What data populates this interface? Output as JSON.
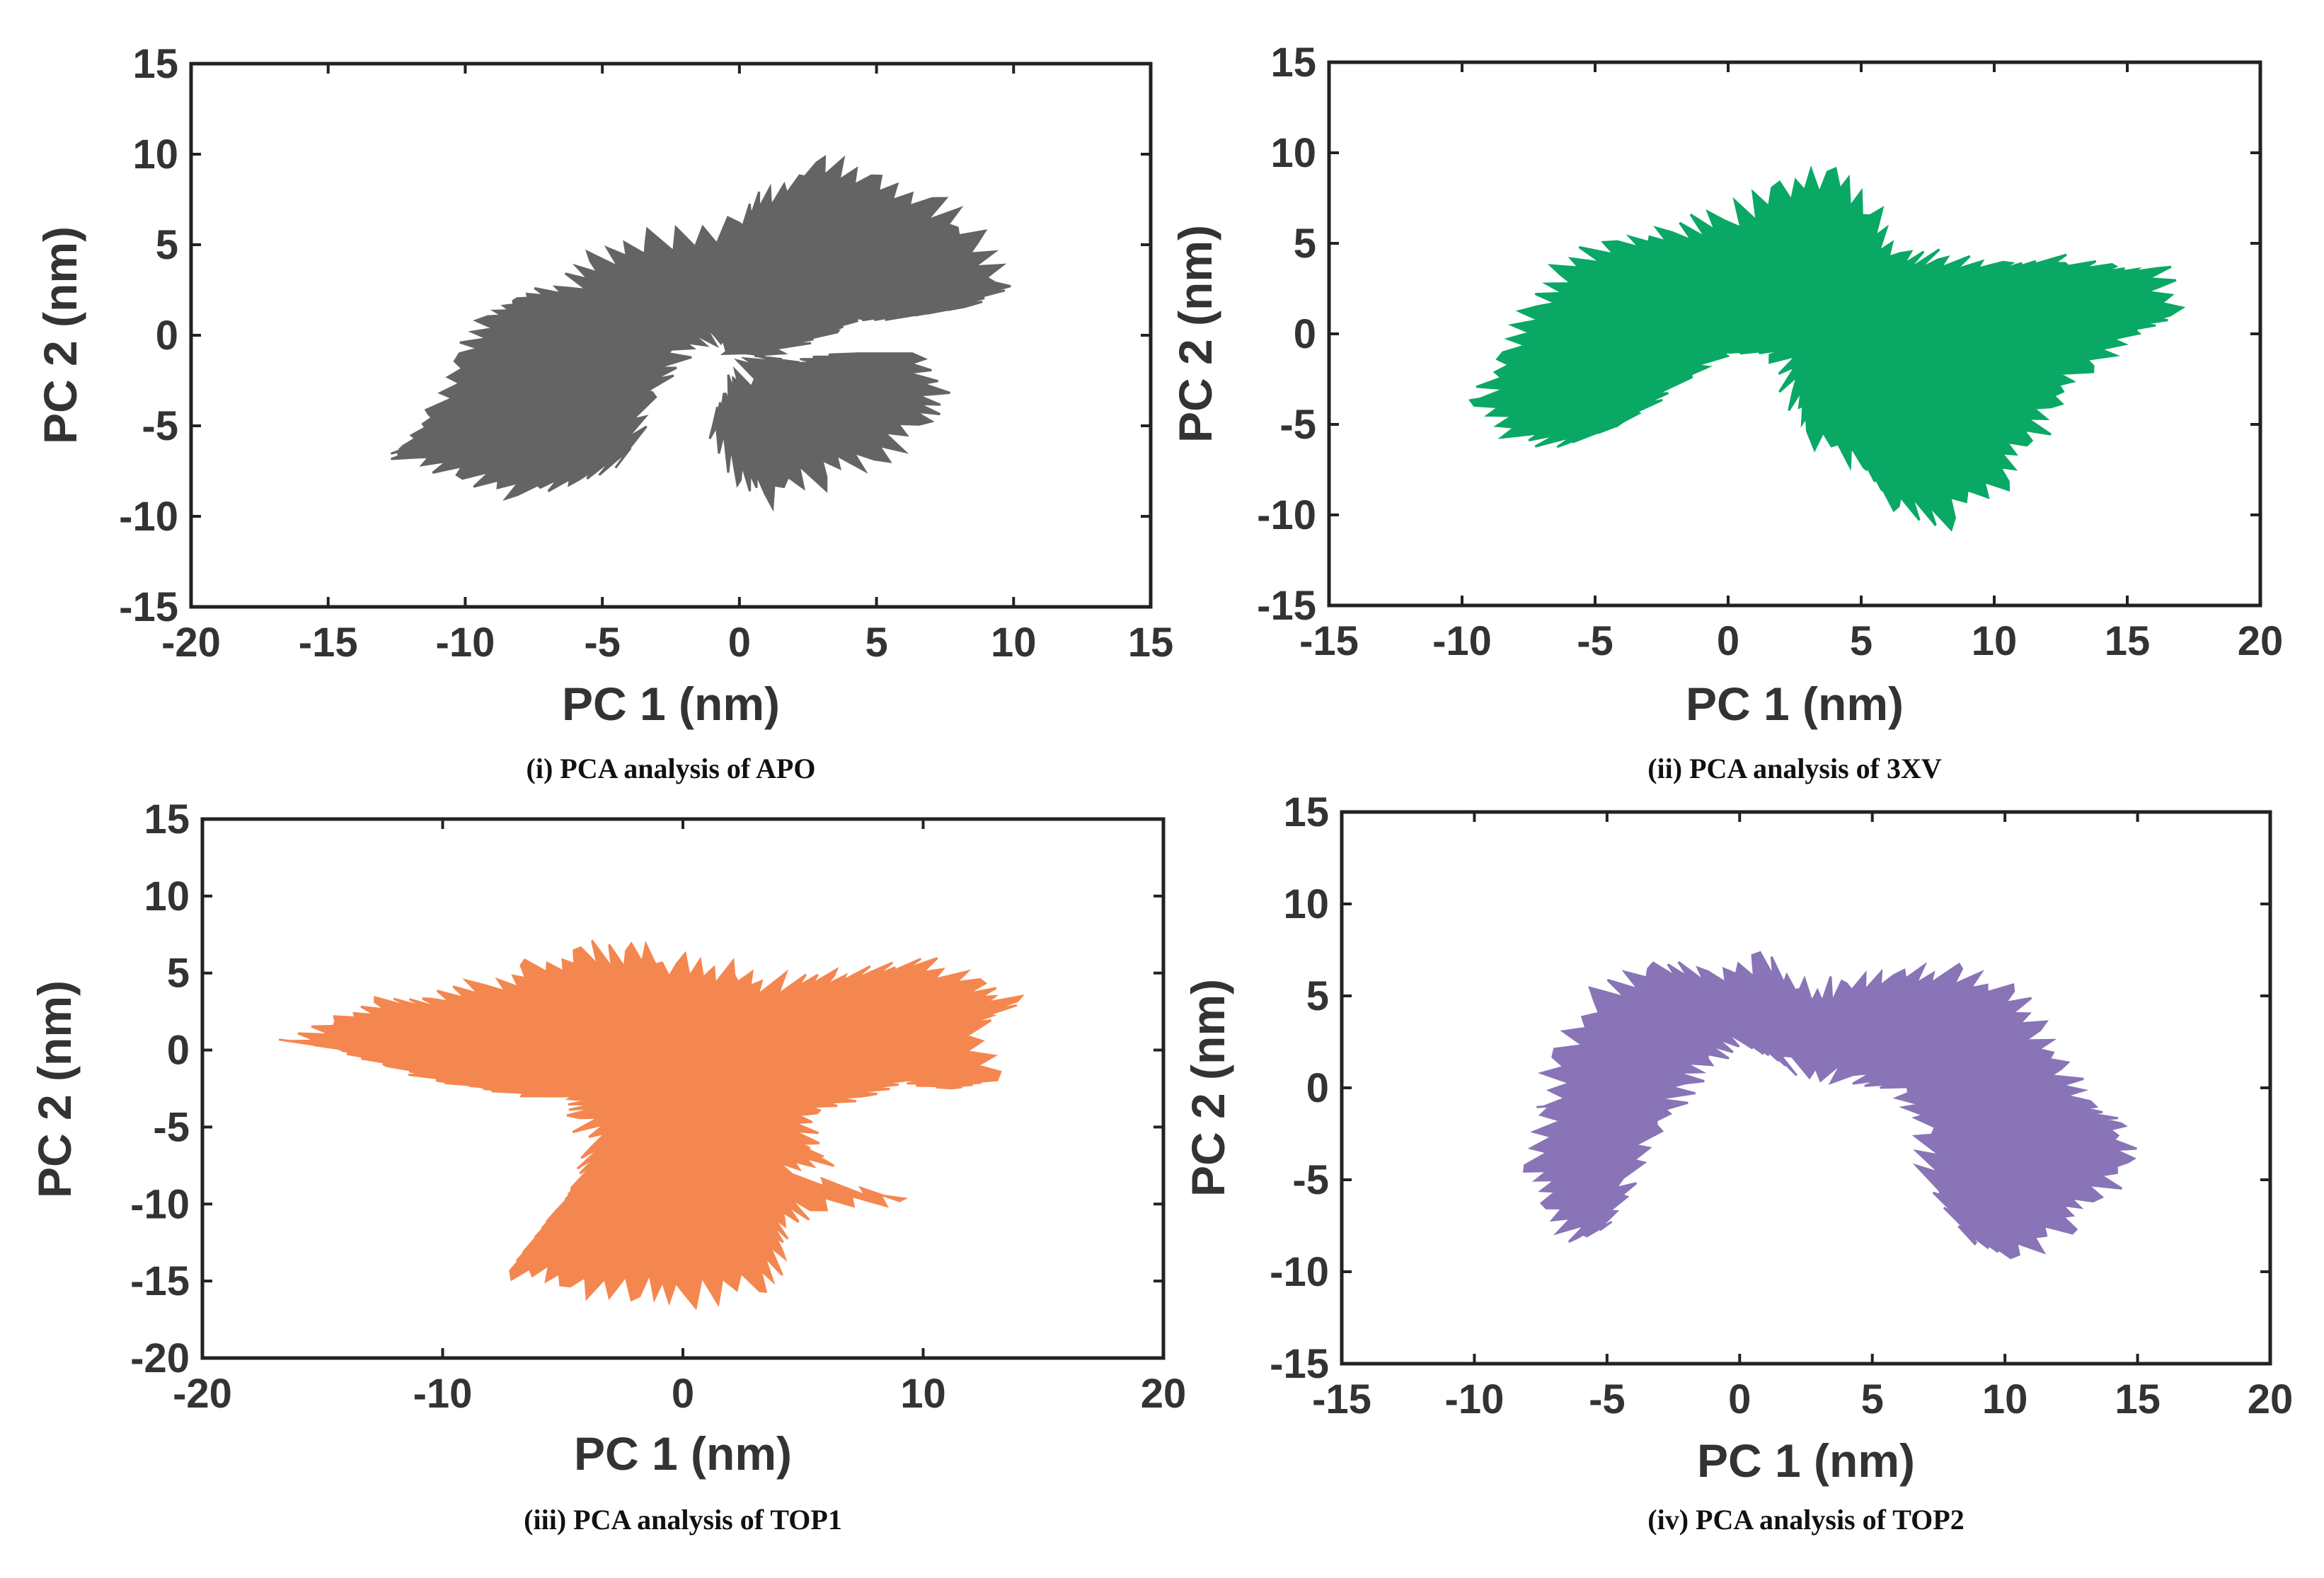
{
  "chart_data": [
    {
      "type": "area",
      "caption": "(i) PCA analysis of APO",
      "xlabel": "PC 1 (nm)",
      "ylabel": "PC 2 (nm)",
      "xlim": [
        -20,
        15
      ],
      "ylim": [
        -15,
        15
      ],
      "xticks": [
        -20,
        -15,
        -10,
        -5,
        0,
        5,
        10,
        15
      ],
      "yticks": [
        -15,
        -10,
        -5,
        0,
        5,
        10,
        15
      ],
      "color": "#646464",
      "outline": [
        [
          -12,
          -6
        ],
        [
          -11,
          -4
        ],
        [
          -10,
          -1
        ],
        [
          -9,
          1
        ],
        [
          -8,
          2
        ],
        [
          -6,
          2.5
        ],
        [
          -5,
          4
        ],
        [
          -3,
          5
        ],
        [
          0,
          6
        ],
        [
          1,
          7.5
        ],
        [
          3,
          9.5
        ],
        [
          5,
          8.5
        ],
        [
          7,
          7
        ],
        [
          8.5,
          5
        ],
        [
          9.3,
          2.5
        ],
        [
          8,
          1.5
        ],
        [
          6,
          1
        ],
        [
          4,
          0.8
        ],
        [
          3,
          0
        ],
        [
          1,
          -1
        ],
        [
          0,
          -2
        ],
        [
          -0.5,
          -3
        ],
        [
          -1,
          -5
        ],
        [
          0,
          -7.5
        ],
        [
          1,
          -8.5
        ],
        [
          3,
          -7.5
        ],
        [
          5,
          -6.5
        ],
        [
          6.5,
          -4.5
        ],
        [
          7,
          -3
        ],
        [
          6,
          -1
        ],
        [
          4,
          -1
        ],
        [
          2,
          -1.5
        ],
        [
          0,
          -1
        ],
        [
          -1,
          0
        ],
        [
          -2,
          -1
        ],
        [
          -3,
          -3
        ],
        [
          -4,
          -6.5
        ],
        [
          -6,
          -8
        ],
        [
          -8,
          -8.5
        ],
        [
          -10,
          -7.5
        ],
        [
          -12,
          -6.5
        ]
      ]
    },
    {
      "type": "area",
      "caption": "(ii) PCA analysis of 3XV",
      "xlabel": "PC 1 (nm)",
      "ylabel": "PC 2 (nm)",
      "xlim": [
        -15,
        20
      ],
      "ylim": [
        -15,
        15
      ],
      "xticks": [
        -15,
        -10,
        -5,
        0,
        5,
        10,
        15,
        20
      ],
      "yticks": [
        -15,
        -10,
        -5,
        0,
        5,
        10,
        15
      ],
      "color": "#0aa865",
      "outline": [
        [
          -9,
          -3.5
        ],
        [
          -8,
          -1
        ],
        [
          -7,
          1.5
        ],
        [
          -6,
          3.5
        ],
        [
          -4,
          5
        ],
        [
          -2,
          5.5
        ],
        [
          0,
          6
        ],
        [
          2,
          8
        ],
        [
          4,
          8.5
        ],
        [
          5.5,
          6
        ],
        [
          6.5,
          4
        ],
        [
          8,
          4
        ],
        [
          10,
          3.5
        ],
        [
          12,
          4
        ],
        [
          14,
          3.5
        ],
        [
          16,
          3.5
        ],
        [
          16.5,
          1
        ],
        [
          15,
          0
        ],
        [
          13,
          -2
        ],
        [
          12,
          -4
        ],
        [
          11,
          -6
        ],
        [
          10,
          -8
        ],
        [
          8,
          -10
        ],
        [
          6,
          -9
        ],
        [
          5,
          -7
        ],
        [
          3,
          -5
        ],
        [
          2.5,
          -3
        ],
        [
          2,
          -1
        ],
        [
          0,
          -1
        ],
        [
          -2,
          -3
        ],
        [
          -4,
          -5
        ],
        [
          -6,
          -6
        ],
        [
          -8,
          -5.5
        ],
        [
          -9,
          -3.5
        ]
      ]
    },
    {
      "type": "area",
      "caption": "(iii) PCA analysis of TOP1",
      "xlabel": "PC 1 (nm)",
      "ylabel": "PC 2 (nm)",
      "xlim": [
        -20,
        20
      ],
      "ylim": [
        -20,
        15
      ],
      "xticks": [
        -20,
        -10,
        0,
        10,
        20
      ],
      "yticks": [
        -20,
        -15,
        -10,
        -5,
        0,
        5,
        10,
        15
      ],
      "color": "#f4874f",
      "outline": [
        [
          -16,
          0.5
        ],
        [
          -14,
          2
        ],
        [
          -12,
          3
        ],
        [
          -10,
          3
        ],
        [
          -8,
          4
        ],
        [
          -6,
          5
        ],
        [
          -4,
          6
        ],
        [
          -2,
          6
        ],
        [
          0,
          5
        ],
        [
          2,
          4.5
        ],
        [
          4,
          4
        ],
        [
          6,
          4.5
        ],
        [
          8,
          5
        ],
        [
          10,
          5.5
        ],
        [
          12,
          4
        ],
        [
          13.5,
          3
        ],
        [
          12,
          1.5
        ],
        [
          12.5,
          -2
        ],
        [
          11,
          -2.5
        ],
        [
          9,
          -2
        ],
        [
          7,
          -3
        ],
        [
          5,
          -4
        ],
        [
          5,
          -6
        ],
        [
          5.5,
          -7
        ],
        [
          4,
          -8
        ],
        [
          9,
          -9.5
        ],
        [
          5,
          -10
        ],
        [
          4,
          -11
        ],
        [
          4,
          -13
        ],
        [
          3,
          -15
        ],
        [
          0,
          -15.5
        ],
        [
          -2,
          -15
        ],
        [
          -5,
          -15
        ],
        [
          -7,
          -14
        ],
        [
          -6,
          -12
        ],
        [
          -5,
          -10
        ],
        [
          -4,
          -8
        ],
        [
          -3.5,
          -6
        ],
        [
          -4,
          -4
        ],
        [
          -4,
          -3
        ],
        [
          -6,
          -3
        ],
        [
          -8,
          -2.5
        ],
        [
          -10,
          -2
        ],
        [
          -12,
          -1
        ],
        [
          -14,
          0
        ],
        [
          -16,
          0.5
        ]
      ]
    },
    {
      "type": "area",
      "caption": "(iv) PCA analysis of TOP2",
      "xlabel": "PC 1 (nm)",
      "ylabel": "PC 2 (nm)",
      "xlim": [
        -15,
        20
      ],
      "ylim": [
        -15,
        15
      ],
      "xticks": [
        -15,
        -10,
        -5,
        0,
        5,
        10,
        15,
        20
      ],
      "yticks": [
        -15,
        -10,
        -5,
        0,
        5,
        10,
        15
      ],
      "color": "#8874b6",
      "outline": [
        [
          -7,
          -1
        ],
        [
          -6.5,
          2
        ],
        [
          -5,
          5
        ],
        [
          -3,
          6.5
        ],
        [
          -1,
          6
        ],
        [
          1,
          6.5
        ],
        [
          2.5,
          5
        ],
        [
          4,
          5.5
        ],
        [
          6,
          6
        ],
        [
          8,
          6
        ],
        [
          10,
          5
        ],
        [
          11,
          3
        ],
        [
          12,
          1
        ],
        [
          13,
          -1
        ],
        [
          14,
          -2
        ],
        [
          14.5,
          -4
        ],
        [
          13,
          -6
        ],
        [
          12,
          -7.5
        ],
        [
          10,
          -9
        ],
        [
          8.5,
          -8
        ],
        [
          7,
          -5
        ],
        [
          7,
          -2
        ],
        [
          6,
          0
        ],
        [
          4,
          0.5
        ],
        [
          2,
          1
        ],
        [
          1,
          2
        ],
        [
          0,
          2.5
        ],
        [
          -1,
          1.5
        ],
        [
          -2,
          0
        ],
        [
          -3,
          -2
        ],
        [
          -4,
          -5
        ],
        [
          -5,
          -7.5
        ],
        [
          -6,
          -8
        ],
        [
          -7,
          -6
        ],
        [
          -7.5,
          -4
        ],
        [
          -7,
          -1
        ]
      ]
    }
  ]
}
